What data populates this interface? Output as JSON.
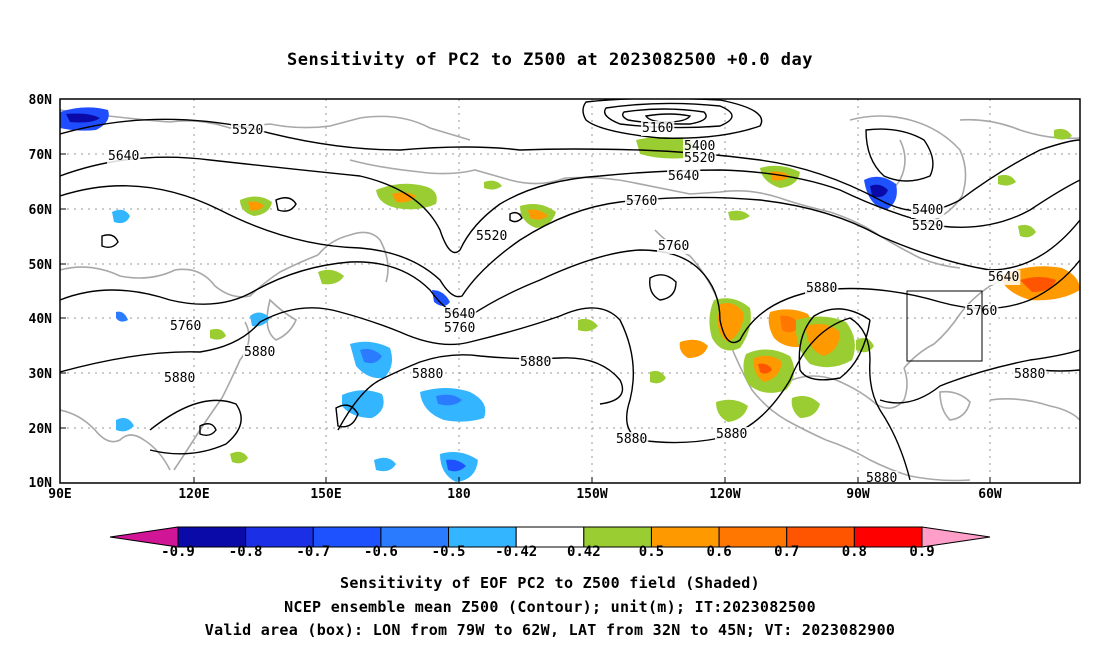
{
  "title": "Sensitivity of PC2 to Z500 at 2023082500 +0.0 day",
  "map": {
    "lat_labels": [
      "80N",
      "70N",
      "60N",
      "50N",
      "40N",
      "30N",
      "20N",
      "10N"
    ],
    "lon_labels": [
      "90E",
      "120E",
      "150E",
      "180",
      "150W",
      "120W",
      "90W",
      "60W"
    ],
    "valid_box": {
      "lon_from": "79W",
      "lon_to": "62W",
      "lat_from": "32N",
      "lat_to": "45N"
    },
    "contour_labels": [
      {
        "text": "5520"
      },
      {
        "text": "5640"
      },
      {
        "text": "5160"
      },
      {
        "text": "5400"
      },
      {
        "text": "5520"
      },
      {
        "text": "5640"
      },
      {
        "text": "5760"
      },
      {
        "text": "5520"
      },
      {
        "text": "5760"
      },
      {
        "text": "5400"
      },
      {
        "text": "5520"
      },
      {
        "text": "5640"
      },
      {
        "text": "5760"
      },
      {
        "text": "5880"
      },
      {
        "text": "5640"
      },
      {
        "text": "5760"
      },
      {
        "text": "5760"
      },
      {
        "text": "5880"
      },
      {
        "text": "5880"
      },
      {
        "text": "5880"
      },
      {
        "text": "5880"
      },
      {
        "text": "5880"
      },
      {
        "text": "5880"
      },
      {
        "text": "5880"
      },
      {
        "text": "5880"
      }
    ],
    "colors": {
      "negative_strong": "#0a0aa8",
      "negative": "#1f4cff",
      "negative_light": "#33b5ff",
      "positive_light": "#9acd32",
      "positive": "#ff9900",
      "positive_strong": "#ff4500",
      "contour": "#000000",
      "coast": "#a8a8a8",
      "grid": "#999999"
    }
  },
  "colorbar": {
    "labels": [
      "-0.9",
      "-0.8",
      "-0.7",
      "-0.6",
      "-0.5",
      "-0.42",
      "0.42",
      "0.5",
      "0.6",
      "0.7",
      "0.8",
      "0.9"
    ],
    "colors": [
      "#0a0aa8",
      "#1a2fe6",
      "#1f52ff",
      "#2b7bff",
      "#33b5ff",
      "#ffffff",
      "#9acd32",
      "#ff9900",
      "#ff7700",
      "#ff5500",
      "#ff0000"
    ],
    "low_arrow_color": "#d11597",
    "high_arrow_color": "#ff9ec8"
  },
  "captions": {
    "line1": "Sensitivity of EOF PC2 to Z500 field (Shaded)",
    "line2": "NCEP ensemble mean Z500 (Contour); unit(m); IT:2023082500",
    "line3": "Valid area (box): LON from 79W to 62W, LAT from 32N to 45N; VT: 2023082900"
  }
}
